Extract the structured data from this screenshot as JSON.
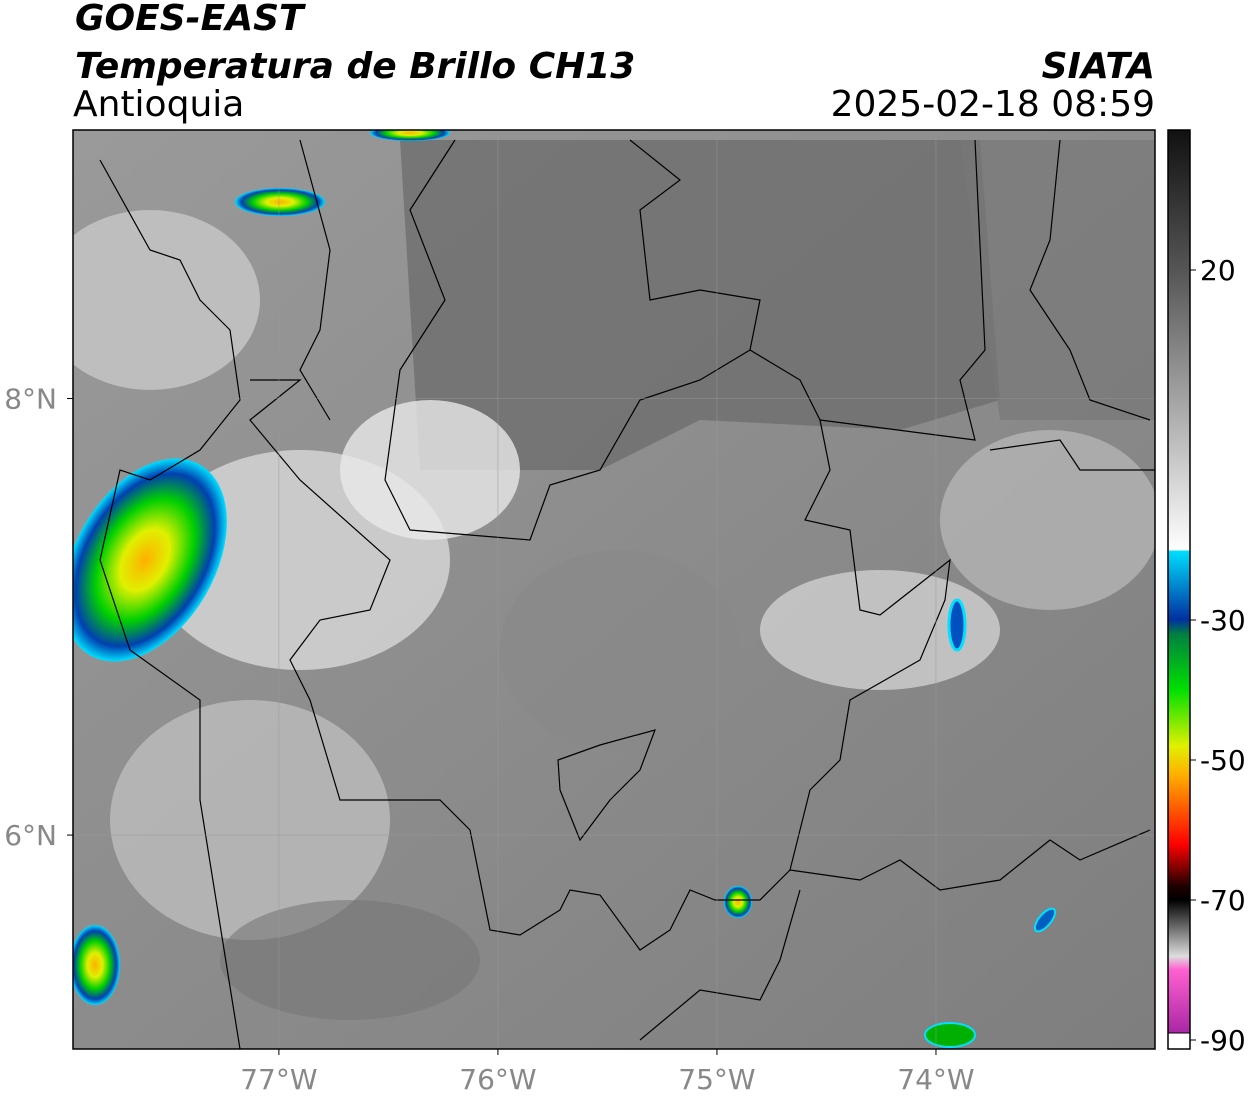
{
  "header": {
    "title": "GOES-EAST",
    "subtitle": "Temperatura de Brillo CH13",
    "region": "Antioquia",
    "source": "SIATA",
    "datetime": "2025-02-18 08:59"
  },
  "map": {
    "xlim": [
      -77.94,
      -73
    ],
    "ylim": [
      5.02,
      9.23
    ],
    "xticks": [
      {
        "value": -77,
        "label": "77°W"
      },
      {
        "value": -76,
        "label": "76°W"
      },
      {
        "value": -75,
        "label": "75°W"
      },
      {
        "value": -74,
        "label": "74°W"
      }
    ],
    "yticks": [
      {
        "value": 6,
        "label": "6°N"
      },
      {
        "value": 8,
        "label": "8°N"
      }
    ],
    "grid": true
  },
  "colorbar": {
    "lim": [
      -90,
      40
    ],
    "ticks": [
      -90,
      -70,
      -50,
      -30,
      20
    ]
  }
}
